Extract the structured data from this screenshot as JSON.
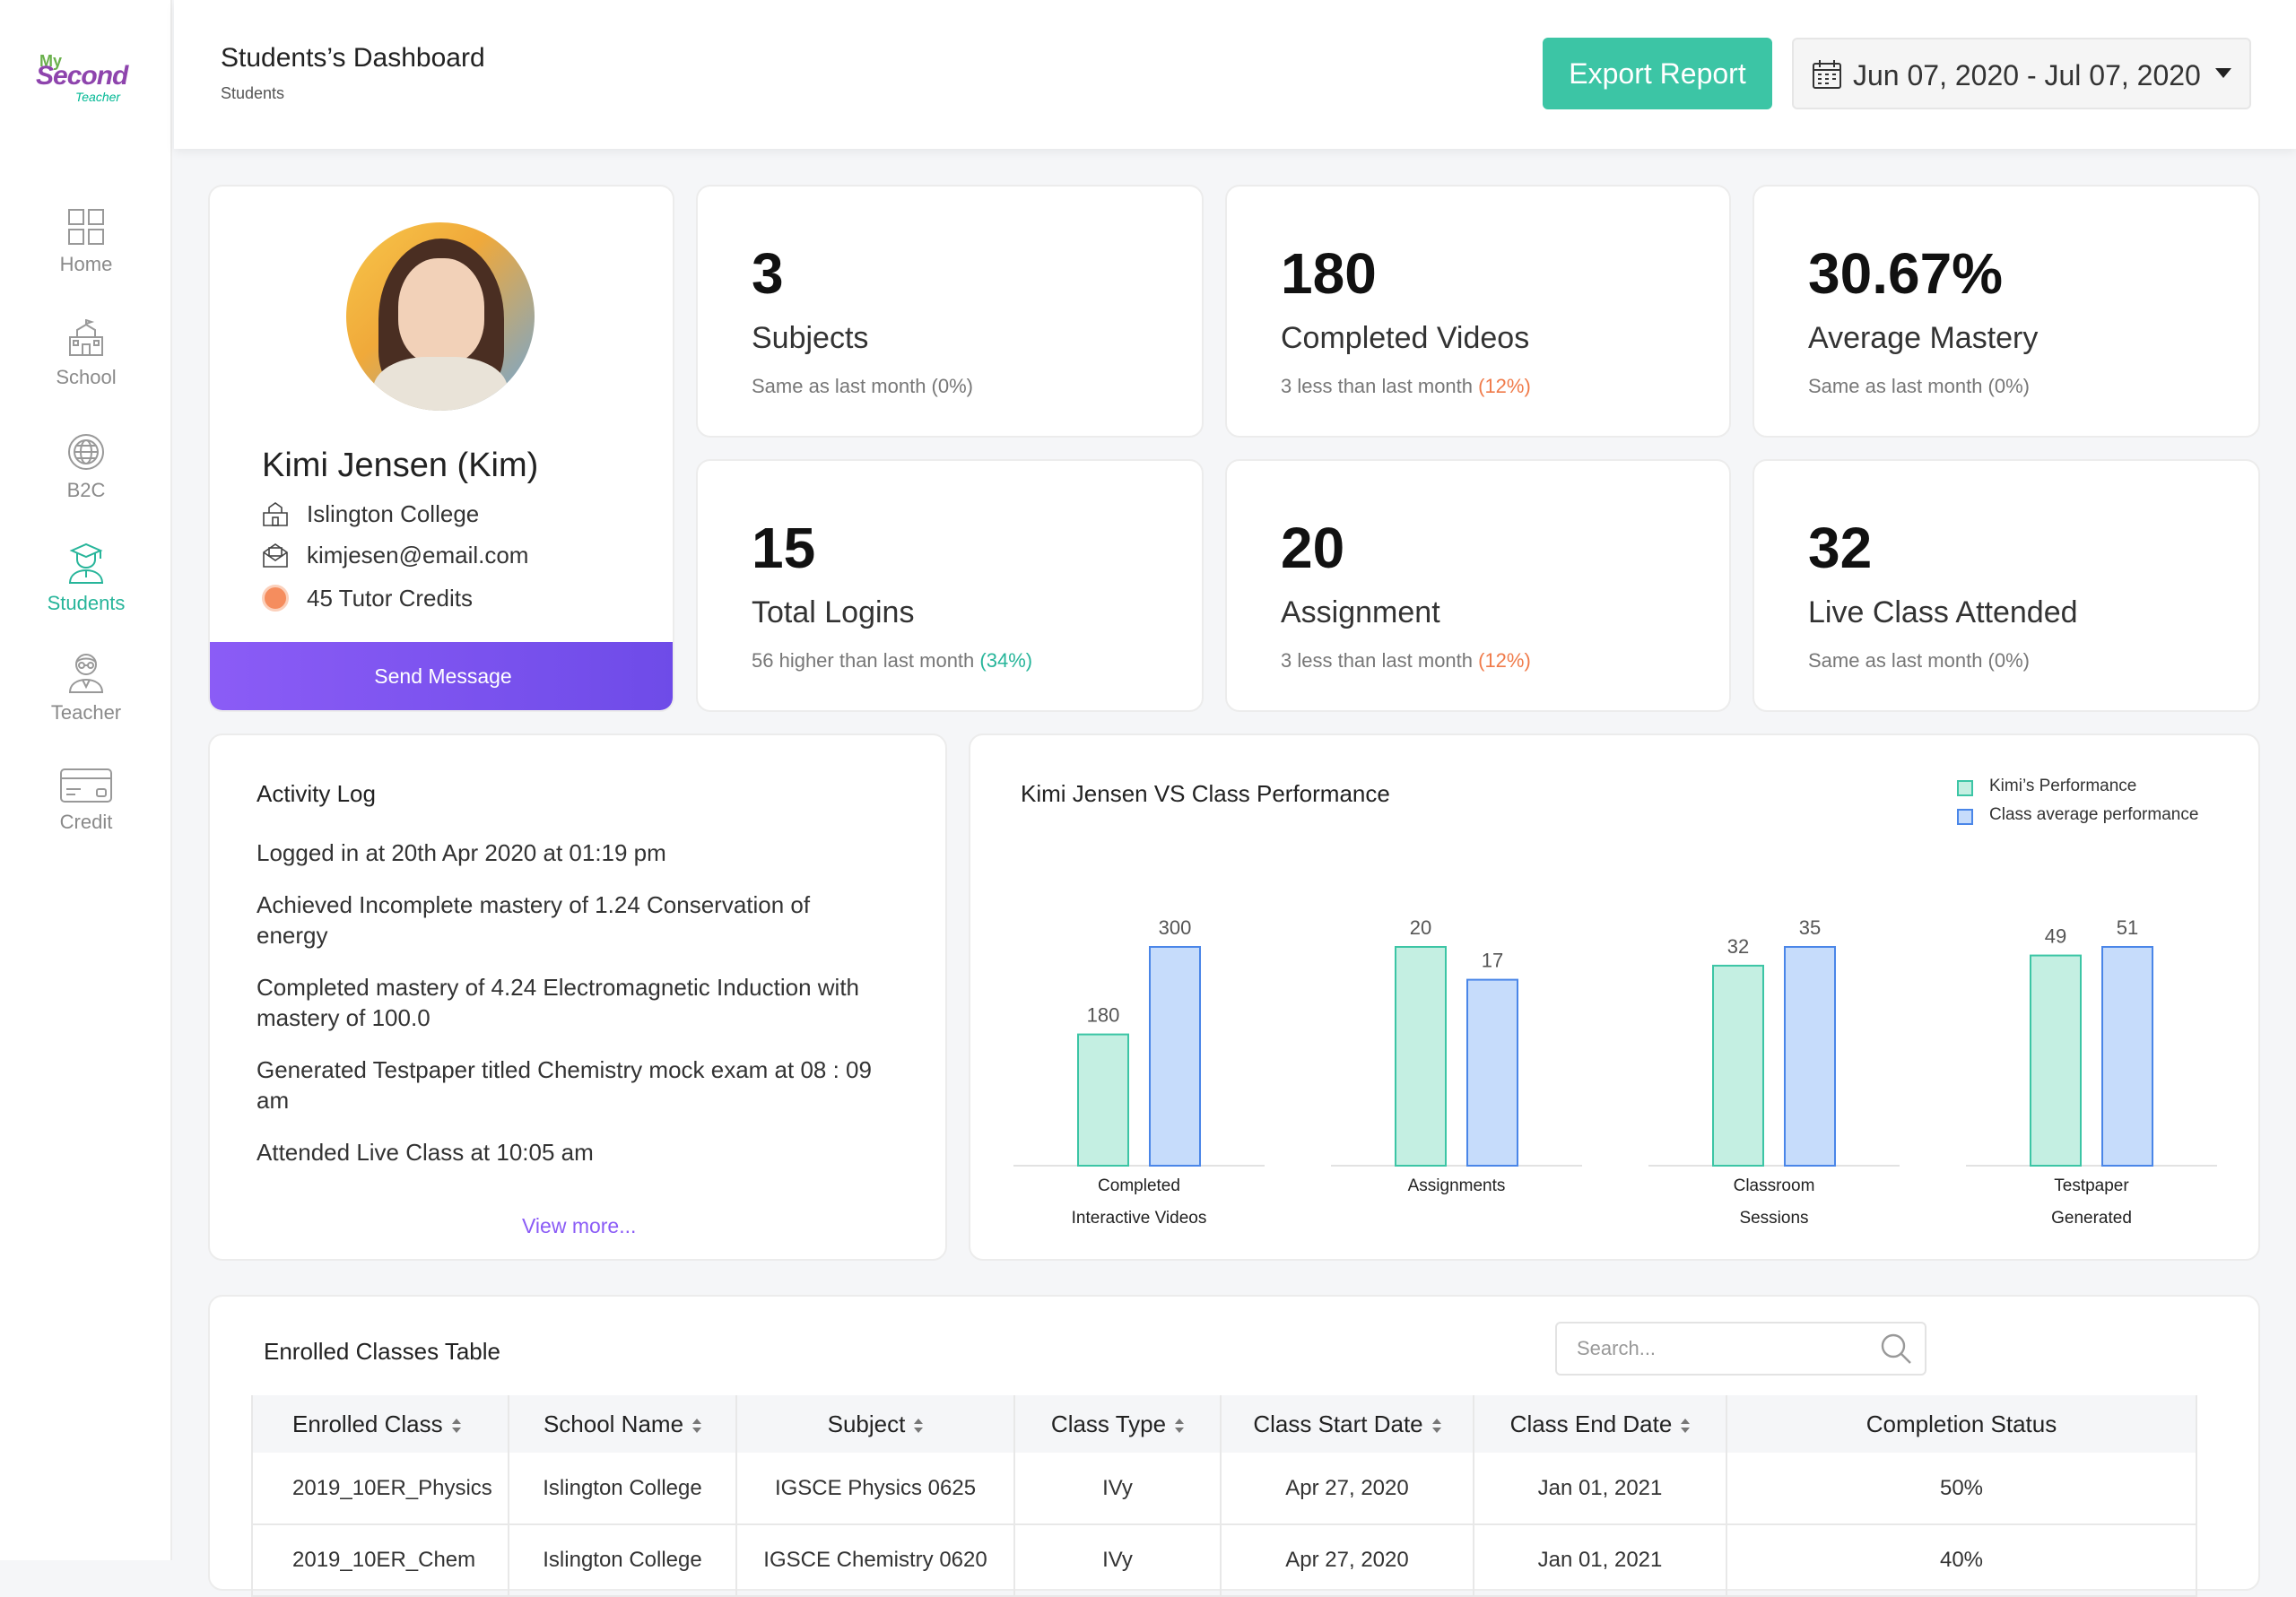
{
  "sidebar": {
    "logo": {
      "line1": "My",
      "line2": "Second",
      "line3": "Teacher"
    },
    "items": [
      {
        "label": "Home",
        "icon": "grid-icon"
      },
      {
        "label": "School",
        "icon": "school-icon"
      },
      {
        "label": "B2C",
        "icon": "globe-icon"
      },
      {
        "label": "Students",
        "icon": "student-icon",
        "active": true
      },
      {
        "label": "Teacher",
        "icon": "teacher-icon"
      },
      {
        "label": "Credit",
        "icon": "credit-card-icon"
      }
    ]
  },
  "header": {
    "title": "Students’s Dashboard",
    "subtitle": "Students",
    "export_label": "Export Report",
    "date_range": "Jun 07, 2020 - Jul 07, 2020"
  },
  "profile": {
    "name": "Kimi Jensen (Kim)",
    "school": "Islington College",
    "email": "kimjesen@email.com",
    "credits": "45 Tutor Credits",
    "send_label": "Send Message"
  },
  "stats": [
    {
      "value": "3",
      "label": "Subjects",
      "compare": "Same as last month (0%)",
      "delta": ""
    },
    {
      "value": "180",
      "label": "Completed Videos",
      "compare": "3 less than last month ",
      "delta": "(12%)",
      "trend": "negative"
    },
    {
      "value": "30.67%",
      "label": "Average Mastery",
      "compare": "Same as last month (0%)",
      "delta": ""
    },
    {
      "value": "15",
      "label": "Total Logins",
      "compare": "56 higher than last month ",
      "delta": "(34%)",
      "trend": "positive"
    },
    {
      "value": "20",
      "label": "Assignment",
      "compare": "3 less than last month ",
      "delta": "(12%)",
      "trend": "negative"
    },
    {
      "value": "32",
      "label": "Live Class Attended",
      "compare": "Same as last month (0%)",
      "delta": ""
    }
  ],
  "activity": {
    "title": "Activity Log",
    "items": [
      "Logged in at 20th Apr 2020 at 01:19 pm",
      "Achieved Incomplete mastery of 1.24 Conservation of energy",
      "Completed mastery of 4.24 Electromagnetic Induction with mastery of 100.0",
      "Generated Testpaper titled Chemistry mock exam at 08 : 09 am",
      "Attended Live Class at 10:05 am"
    ],
    "view_more": "View more..."
  },
  "chart_data": {
    "type": "bar",
    "title": "Kimi Jensen VS Class Performance",
    "categories": [
      [
        "Completed",
        "Interactive Videos"
      ],
      [
        "Assignments"
      ],
      [
        "Classroom",
        "Sessions"
      ],
      [
        "Testpaper",
        "Generated"
      ]
    ],
    "series": [
      {
        "name": "Kimi’s Performance",
        "values": [
          180,
          20,
          32,
          49
        ],
        "color": "#c4efe2",
        "stroke": "#3cc5a5"
      },
      {
        "name": "Class average performance",
        "values": [
          300,
          17,
          35,
          51
        ],
        "color": "#c6dcfb",
        "stroke": "#4a86e8"
      }
    ],
    "legend_position": "top-right",
    "grid": false
  },
  "table": {
    "title": "Enrolled Classes Table",
    "search_placeholder": "Search...",
    "columns": [
      "Enrolled Class",
      "School Name",
      "Subject",
      "Class Type",
      "Class Start Date",
      "Class End Date",
      "Completion Status"
    ],
    "rows": [
      [
        "2019_10ER_Physics",
        "Islington College",
        "IGSCE Physics 0625",
        "IVy",
        "Apr 27, 2020",
        "Jan 01, 2021",
        "50%"
      ],
      [
        "2019_10ER_Chem",
        "Islington College",
        "IGSCE Chemistry 0620",
        "IVy",
        "Apr 27, 2020",
        "Jan 01, 2021",
        "40%"
      ]
    ]
  },
  "colors": {
    "accent": "#3cc5a5",
    "purple": "#8b5cf6",
    "negative": "#f07b4a",
    "positive": "#27b59a"
  }
}
